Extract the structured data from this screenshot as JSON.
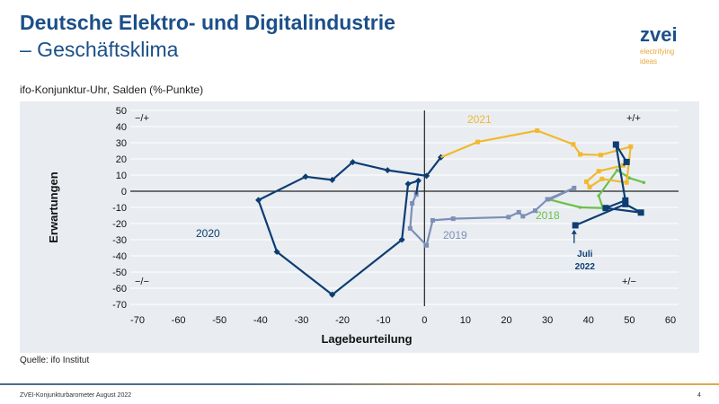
{
  "header": {
    "title": "Deutsche Elektro- und Digitalindustrie",
    "subtitle": "– Geschäftsklima"
  },
  "logo": {
    "name": "zvei",
    "tagline_1": "electrifying",
    "tagline_2": "ideas"
  },
  "chart_subtitle": "ifo-Konjunktur-Uhr, Salden (%-Punkte)",
  "source": "Quelle: ifo Institut",
  "footer": {
    "text": "ZVEI-Konjunkturbarometer August 2022",
    "page": "4"
  },
  "chart_data": {
    "type": "line",
    "xlabel": "Lagebeurteilung",
    "ylabel": "Erwartungen",
    "xlim": [
      -70,
      60
    ],
    "ylim": [
      -70,
      50
    ],
    "xticks": [
      -70,
      -60,
      -50,
      -40,
      -30,
      -20,
      -10,
      0,
      10,
      20,
      30,
      40,
      50,
      60
    ],
    "yticks": [
      50,
      40,
      30,
      20,
      10,
      0,
      -10,
      -20,
      -30,
      -40,
      -50,
      -60,
      -70
    ],
    "grid": true,
    "quadrants": {
      "top_left": "−/+",
      "top_right": "+/+",
      "bottom_left": "−/−",
      "bottom_right": "+/−"
    },
    "annotation": {
      "line1": "Juli",
      "line2": "2022",
      "x": 36.5,
      "y": -21
    },
    "series": [
      {
        "name": "2018",
        "color": "#6cc04a",
        "marker": "dot",
        "points": [
          [
            53.5,
            5.4
          ],
          [
            50,
            8.2
          ],
          [
            47,
            13
          ],
          [
            42.5,
            -2.8
          ],
          [
            43.5,
            -10.4
          ],
          [
            38,
            -10
          ],
          [
            30.5,
            -5.2
          ]
        ]
      },
      {
        "name": "2019",
        "color": "#7d8fb8",
        "marker": "square",
        "points": [
          [
            36.5,
            2
          ],
          [
            30,
            -5
          ],
          [
            27,
            -12
          ],
          [
            24,
            -15.5
          ],
          [
            23,
            -13
          ],
          [
            20.5,
            -16
          ],
          [
            7,
            -17
          ],
          [
            2,
            -18
          ],
          [
            0.5,
            -33.5
          ],
          [
            -3.5,
            -23
          ],
          [
            -3,
            -7.5
          ],
          [
            -2,
            -2
          ]
        ]
      },
      {
        "name": "2020",
        "color": "#0d3d73",
        "marker": "diamond",
        "points": [
          [
            -1.5,
            6.5
          ],
          [
            -4,
            4.5
          ],
          [
            -5.5,
            -30
          ],
          [
            -22.5,
            -64
          ],
          [
            -36,
            -37.5
          ],
          [
            -40.5,
            -5.5
          ],
          [
            -29,
            9
          ],
          [
            -22.5,
            7
          ],
          [
            -17.5,
            18
          ],
          [
            -9,
            13
          ],
          [
            0.5,
            9.5
          ],
          [
            4,
            21
          ]
        ]
      },
      {
        "name": "2021",
        "color": "#f1b92e",
        "marker": "square",
        "points": [
          [
            13,
            30.5
          ],
          [
            27.5,
            37.5
          ],
          [
            36.3,
            29
          ],
          [
            38,
            22.8
          ],
          [
            43,
            22.4
          ],
          [
            50.3,
            27.6
          ],
          [
            49.3,
            5.4
          ],
          [
            43.3,
            7.6
          ],
          [
            40.3,
            2.6
          ],
          [
            39.5,
            5.9
          ],
          [
            42.5,
            12.4
          ],
          [
            48.5,
            16
          ]
        ]
      },
      {
        "name": "2022",
        "color": "#0d3d73",
        "marker": "bigsquare",
        "points": [
          [
            49.3,
            18.1
          ],
          [
            46.7,
            28.9
          ],
          [
            49,
            -5.7
          ],
          [
            44.2,
            -10.4
          ],
          [
            52.8,
            -13.2
          ],
          [
            49,
            -8
          ],
          [
            36.8,
            -21.1
          ]
        ]
      }
    ]
  }
}
